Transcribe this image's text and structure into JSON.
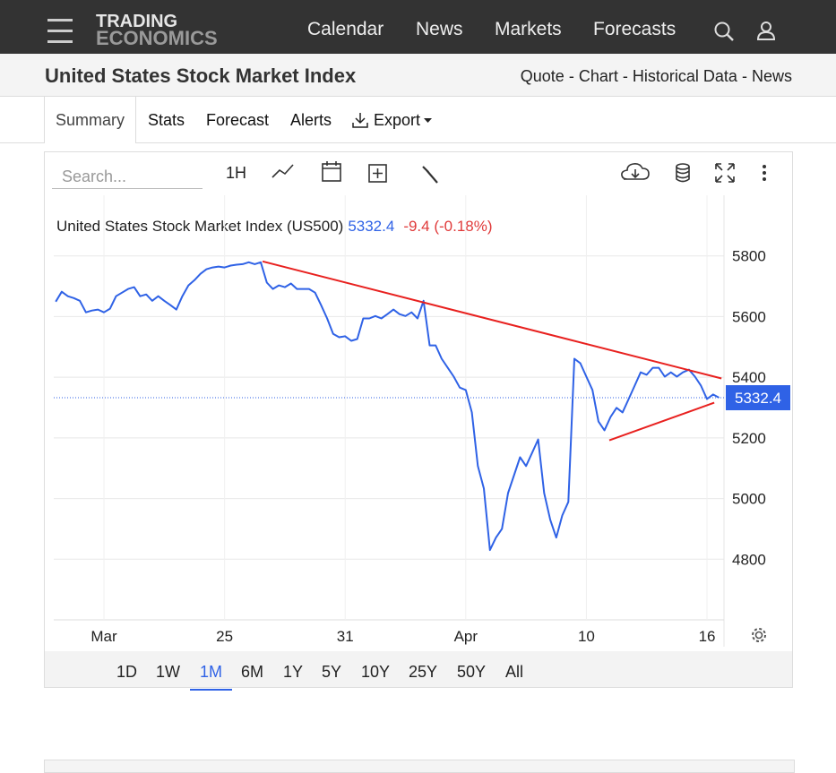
{
  "header": {
    "logo": [
      "TRADING",
      "ECONOMICS"
    ],
    "nav": [
      "Calendar",
      "News",
      "Markets",
      "Forecasts"
    ]
  },
  "page": {
    "title": "United States Stock Market Index",
    "links": [
      "Quote",
      "Chart",
      "Historical Data",
      "News"
    ],
    "separator": "-"
  },
  "tabs": [
    "Summary",
    "Stats",
    "Forecast",
    "Alerts",
    "Export"
  ],
  "toolbar": {
    "search_placeholder": "Search...",
    "interval": "1H"
  },
  "ranges": [
    "1D",
    "1W",
    "1M",
    "6M",
    "1Y",
    "5Y",
    "10Y",
    "25Y",
    "50Y",
    "All"
  ],
  "active_range": "1M",
  "chart_data": {
    "type": "line",
    "title": "United States Stock Market Index (US500)",
    "change": "-9.4 (-0.18%)",
    "categories": [
      null,
      null,
      null,
      null,
      null,
      null,
      null,
      null,
      "Mar",
      null,
      null,
      null,
      null,
      null,
      null,
      null,
      null,
      null,
      null,
      null,
      null,
      null,
      null,
      null,
      null,
      null,
      null,
      null,
      "25",
      null,
      null,
      null,
      null,
      null,
      null,
      null,
      null,
      null,
      null,
      null,
      null,
      null,
      null,
      null,
      null,
      null,
      null,
      null,
      "31",
      null,
      null,
      null,
      null,
      null,
      null,
      null,
      null,
      null,
      null,
      null,
      null,
      null,
      null,
      null,
      null,
      null,
      null,
      null,
      "Apr",
      null,
      null,
      null,
      null,
      null,
      null,
      null,
      null,
      null,
      null,
      null,
      null,
      null,
      null,
      null,
      null,
      null,
      null,
      null,
      "10",
      null,
      null,
      null,
      null,
      null,
      null,
      null,
      null,
      null,
      null,
      null,
      null,
      null,
      null,
      null,
      null,
      null,
      null,
      null,
      "16",
      null,
      null
    ],
    "values": [
      5649,
      5682,
      5667,
      5661,
      5652,
      5614,
      5620,
      5623,
      5614,
      5626,
      5667,
      5679,
      5691,
      5697,
      5667,
      5673,
      5652,
      5667,
      5652,
      5638,
      5623,
      5667,
      5703,
      5720,
      5741,
      5756,
      5762,
      5765,
      5762,
      5768,
      5771,
      5773,
      5779,
      5773,
      5779,
      5712,
      5691,
      5703,
      5697,
      5709,
      5691,
      5691,
      5691,
      5679,
      5638,
      5594,
      5543,
      5532,
      5535,
      5520,
      5526,
      5594,
      5594,
      5602,
      5594,
      5608,
      5623,
      5608,
      5602,
      5614,
      5594,
      5652,
      5505,
      5505,
      5461,
      5431,
      5402,
      5366,
      5358,
      5284,
      5107,
      5033,
      4830,
      4871,
      4900,
      5018,
      5077,
      5136,
      5107,
      5151,
      5195,
      5018,
      4930,
      4871,
      4944,
      4989,
      5461,
      5446,
      5402,
      5358,
      5254,
      5225,
      5269,
      5299,
      5284,
      5328,
      5372,
      5416,
      5408,
      5431,
      5431,
      5402,
      5416,
      5402,
      5416,
      5425,
      5402,
      5372,
      5328,
      5343,
      5332.4
    ],
    "color": "#2f62e6",
    "ylim": [
      4600,
      6000
    ],
    "yticks": [
      4800,
      5000,
      5200,
      5400,
      5600,
      5800
    ],
    "grid": true,
    "last_value_line": true,
    "trendlines": [
      {
        "color": "#e8211f",
        "x": [
          34.3,
          110.4
        ],
        "values": [
          5782,
          5396
        ]
      },
      {
        "color": "#e8211f",
        "x": [
          91.8,
          109.2
        ],
        "values": [
          5192,
          5316
        ]
      }
    ]
  }
}
